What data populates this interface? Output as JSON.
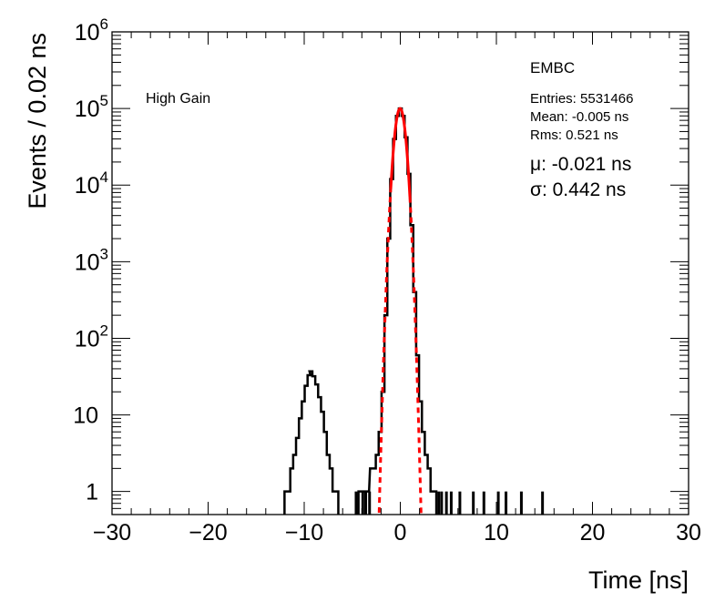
{
  "chart_data": {
    "type": "histogram",
    "scale": {
      "y": "log",
      "x": "linear"
    },
    "xlabel": "Time [ns]",
    "ylabel": "Events / 0.02 ns",
    "xlim": [
      -30,
      30
    ],
    "ylim": [
      0.5,
      1000000
    ],
    "x_ticks": [
      -30,
      -20,
      -10,
      0,
      10,
      20,
      30
    ],
    "x_tick_labels": [
      "−30",
      "−20",
      "−10",
      "0",
      "10",
      "20",
      "30"
    ],
    "y_ticks": [
      1,
      10,
      100,
      1000,
      10000,
      100000,
      1000000
    ],
    "y_tick_labels": [
      {
        "base": "1",
        "exp": ""
      },
      {
        "base": "10",
        "exp": ""
      },
      {
        "base": "10",
        "exp": "2"
      },
      {
        "base": "10",
        "exp": "3"
      },
      {
        "base": "10",
        "exp": "4"
      },
      {
        "base": "10",
        "exp": "5"
      },
      {
        "base": "10",
        "exp": "6"
      }
    ],
    "grid": false,
    "label_left": "High Gain",
    "label_right": "EMBC",
    "stats": {
      "entries": "Entries: 5531466",
      "mean": "Mean: -0.005 ns",
      "rms": "Rms: 0.521 ns"
    },
    "fit_results": {
      "mu": "μ: -0.021 ns",
      "sigma": "σ: 0.442 ns"
    },
    "series": [
      {
        "kind": "histogram",
        "color": "#000000",
        "points": [
          [
            -11.9,
            1
          ],
          [
            -11.6,
            1
          ],
          [
            -11.3,
            2
          ],
          [
            -11.0,
            3
          ],
          [
            -10.7,
            5
          ],
          [
            -10.4,
            9
          ],
          [
            -10.1,
            15
          ],
          [
            -9.8,
            24
          ],
          [
            -9.5,
            33
          ],
          [
            -9.3,
            37
          ],
          [
            -9.0,
            32
          ],
          [
            -8.7,
            25
          ],
          [
            -8.4,
            17
          ],
          [
            -8.1,
            11
          ],
          [
            -7.8,
            6
          ],
          [
            -7.5,
            3
          ],
          [
            -7.2,
            2
          ],
          [
            -6.9,
            1
          ],
          [
            -6.6,
            1
          ],
          [
            -4.2,
            1
          ],
          [
            -3.8,
            1
          ],
          [
            -3.4,
            1
          ],
          [
            -3.0,
            2
          ],
          [
            -2.7,
            2
          ],
          [
            -2.4,
            3
          ],
          [
            -2.1,
            6
          ],
          [
            -1.8,
            20
          ],
          [
            -1.5,
            200
          ],
          [
            -1.2,
            2000
          ],
          [
            -0.9,
            12000
          ],
          [
            -0.6,
            40000
          ],
          [
            -0.3,
            80000
          ],
          [
            0.0,
            100000
          ],
          [
            0.3,
            80000
          ],
          [
            0.6,
            42000
          ],
          [
            0.9,
            14000
          ],
          [
            1.2,
            3000
          ],
          [
            1.5,
            400
          ],
          [
            1.8,
            60
          ],
          [
            2.1,
            15
          ],
          [
            2.4,
            6
          ],
          [
            2.7,
            3
          ],
          [
            3.0,
            2
          ],
          [
            3.3,
            1
          ],
          [
            3.6,
            1
          ]
        ],
        "sparse_ones": [
          -4.6,
          -3.9,
          -3.6,
          -3.2,
          4.0,
          4.3,
          4.8,
          5.3,
          6.2,
          7.6,
          8.7,
          10.2,
          11.0,
          12.6,
          14.8
        ]
      },
      {
        "kind": "gaussian-fit",
        "color": "#ff0000",
        "mu": -0.021,
        "sigma": 0.442,
        "amplitude": 100000,
        "solid_range": [
          -1.0,
          1.0
        ],
        "dashed_range": [
          -2.2,
          2.2
        ]
      }
    ]
  }
}
